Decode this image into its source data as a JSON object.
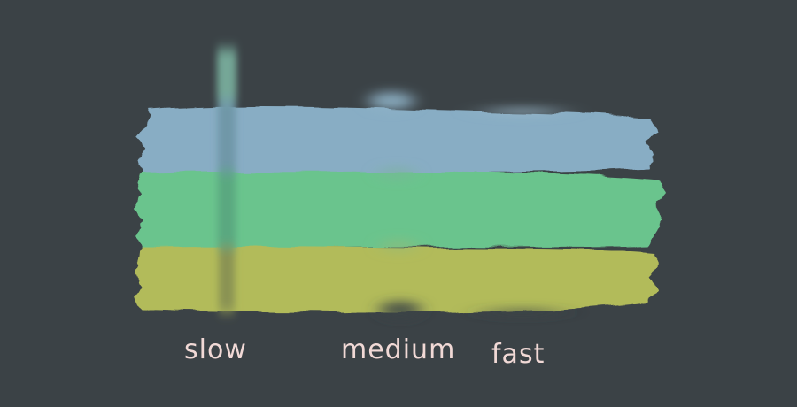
{
  "labels": {
    "slow": "slow",
    "medium": "medium",
    "fast": "fast"
  },
  "colors": {
    "background": "#3b4246",
    "band_blue": "#88adc4",
    "band_green": "#6bc48d",
    "band_yellow": "#b2bb5a",
    "label_text": "#f1d9d6"
  }
}
